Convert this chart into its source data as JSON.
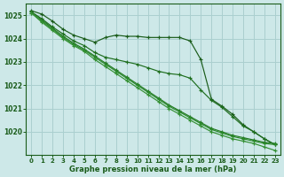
{
  "xlabel": "Graphe pression niveau de la mer (hPa)",
  "x": [
    0,
    1,
    2,
    3,
    4,
    5,
    6,
    7,
    8,
    9,
    10,
    11,
    12,
    13,
    14,
    15,
    16,
    17,
    18,
    19,
    20,
    21,
    22,
    23
  ],
  "lines": [
    {
      "y": [
        1025.2,
        1025.05,
        1024.75,
        1024.4,
        1024.15,
        1024.0,
        1023.85,
        1024.05,
        1024.15,
        1024.1,
        1024.1,
        1024.05,
        1024.05,
        1024.05,
        1024.05,
        1023.9,
        1023.1,
        1021.4,
        1021.1,
        1020.75,
        1020.3,
        1020.0,
        1019.7,
        1019.45
      ],
      "color": "#1a5c1a"
    },
    {
      "y": [
        1025.15,
        1024.85,
        1024.5,
        1024.2,
        1023.9,
        1023.7,
        1023.4,
        1023.2,
        1023.1,
        1023.0,
        1022.9,
        1022.75,
        1022.6,
        1022.5,
        1022.45,
        1022.3,
        1021.8,
        1021.35,
        1021.05,
        1020.65,
        1020.25,
        1020.0,
        1019.7,
        1019.45
      ],
      "color": "#1e6e1e"
    },
    {
      "y": [
        1025.15,
        1024.8,
        1024.45,
        1024.1,
        1023.8,
        1023.55,
        1023.25,
        1022.95,
        1022.65,
        1022.35,
        1022.05,
        1021.75,
        1021.45,
        1021.15,
        1020.9,
        1020.65,
        1020.4,
        1020.15,
        1020.0,
        1019.85,
        1019.75,
        1019.65,
        1019.55,
        1019.5
      ],
      "color": "#237823"
    },
    {
      "y": [
        1025.1,
        1024.75,
        1024.4,
        1024.05,
        1023.75,
        1023.5,
        1023.2,
        1022.9,
        1022.6,
        1022.3,
        1022.0,
        1021.7,
        1021.4,
        1021.1,
        1020.85,
        1020.6,
        1020.35,
        1020.1,
        1019.95,
        1019.8,
        1019.7,
        1019.6,
        1019.5,
        1019.45
      ],
      "color": "#2a8a2a"
    },
    {
      "y": [
        1025.1,
        1024.7,
        1024.35,
        1024.0,
        1023.7,
        1023.45,
        1023.1,
        1022.8,
        1022.5,
        1022.2,
        1021.9,
        1021.6,
        1021.3,
        1021.0,
        1020.75,
        1020.5,
        1020.25,
        1020.0,
        1019.85,
        1019.7,
        1019.6,
        1019.5,
        1019.35,
        1019.2
      ],
      "color": "#349034"
    }
  ],
  "ylim": [
    1019.0,
    1025.5
  ],
  "yticks": [
    1020,
    1021,
    1022,
    1023,
    1024,
    1025
  ],
  "bg_color": "#cde8e8",
  "grid_color": "#aacfcf",
  "text_color": "#1a5c1a",
  "line_width": 0.85,
  "marker_size": 3.2
}
